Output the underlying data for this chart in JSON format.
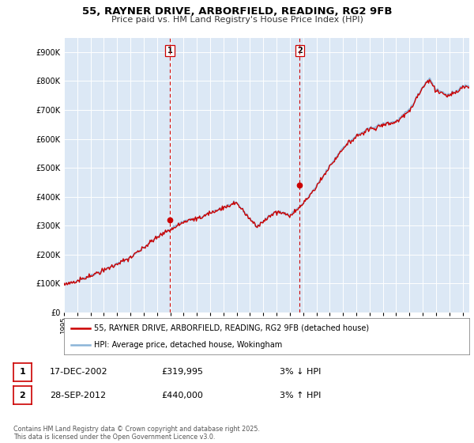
{
  "title_line1": "55, RAYNER DRIVE, ARBORFIELD, READING, RG2 9FB",
  "title_line2": "Price paid vs. HM Land Registry's House Price Index (HPI)",
  "bg_color": "#ffffff",
  "plot_bg_color": "#dce8f5",
  "legend_line1": "55, RAYNER DRIVE, ARBORFIELD, READING, RG2 9FB (detached house)",
  "legend_line2": "HPI: Average price, detached house, Wokingham",
  "sale1_date": "17-DEC-2002",
  "sale1_price": "£319,995",
  "sale1_note": "3% ↓ HPI",
  "sale2_date": "28-SEP-2012",
  "sale2_price": "£440,000",
  "sale2_note": "3% ↑ HPI",
  "footer": "Contains HM Land Registry data © Crown copyright and database right 2025.\nThis data is licensed under the Open Government Licence v3.0.",
  "hpi_color": "#8ab4d8",
  "price_color": "#cc0000",
  "vline_color": "#cc0000",
  "ylim": [
    0,
    950000
  ],
  "yticks": [
    0,
    100000,
    200000,
    300000,
    400000,
    500000,
    600000,
    700000,
    800000,
    900000
  ],
  "sale1_x": 2002.96,
  "sale1_y": 319995,
  "sale2_x": 2012.74,
  "sale2_y": 440000,
  "xmin": 1995,
  "xmax": 2025.5
}
